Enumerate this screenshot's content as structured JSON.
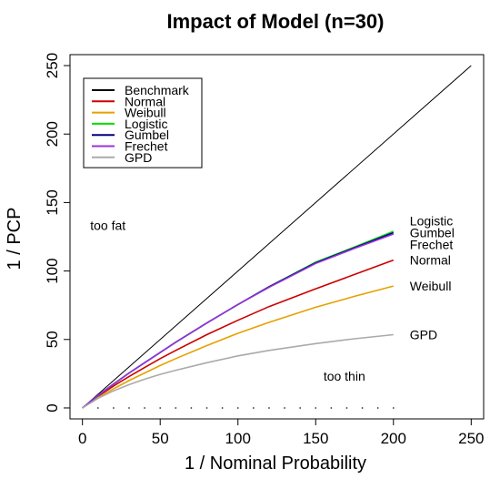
{
  "chart_data": {
    "type": "line",
    "title": "Impact of Model (n=30)",
    "xlabel": "1 / Nominal Probability",
    "ylabel": "1 / PCP",
    "xlim": [
      -8,
      258
    ],
    "ylim": [
      -8,
      258
    ],
    "x_ticks": [
      "0",
      "50",
      "100",
      "150",
      "200",
      "250"
    ],
    "y_ticks": [
      "0",
      "50",
      "100",
      "150",
      "200",
      "250"
    ],
    "legend_position": "top-left",
    "grid": false,
    "annotations": [
      {
        "text": "too fat",
        "x": 5,
        "y": 130
      },
      {
        "text": "too thin",
        "x": 155,
        "y": 20
      }
    ],
    "series": [
      {
        "name": "Benchmark",
        "color": "#000000",
        "x": [
          0,
          250
        ],
        "y": [
          0,
          250
        ],
        "end_label": ""
      },
      {
        "name": "Normal",
        "color": "#cc0000",
        "x": [
          0,
          10,
          20,
          30,
          40,
          50,
          60,
          80,
          100,
          120,
          150,
          175,
          200
        ],
        "y": [
          0,
          8.5,
          16,
          23,
          29.5,
          36,
          42,
          53.5,
          64,
          74,
          87,
          97.5,
          108
        ],
        "end_label": "Normal"
      },
      {
        "name": "Weibull",
        "color": "#e6a000",
        "x": [
          0,
          10,
          20,
          30,
          40,
          50,
          60,
          80,
          100,
          120,
          150,
          175,
          200
        ],
        "y": [
          0,
          7.5,
          14,
          20,
          25.5,
          31,
          36,
          45.5,
          54.5,
          62.5,
          73.5,
          81.5,
          89
        ],
        "end_label": "Weibull"
      },
      {
        "name": "Logistic",
        "color": "#00dd00",
        "x": [
          0,
          10,
          20,
          30,
          40,
          50,
          60,
          80,
          100,
          120,
          150,
          175,
          200
        ],
        "y": [
          0,
          9,
          17.5,
          25.5,
          33,
          40.5,
          48,
          62,
          75.5,
          88.5,
          106.5,
          117.5,
          129
        ],
        "end_label": "Logistic"
      },
      {
        "name": "Gumbel",
        "color": "#000080",
        "x": [
          0,
          10,
          20,
          30,
          40,
          50,
          60,
          80,
          100,
          120,
          150,
          175,
          200
        ],
        "y": [
          0,
          9,
          17.5,
          25.5,
          33,
          40.5,
          48,
          62,
          75.5,
          88.5,
          106,
          117,
          128
        ],
        "end_label": "Gumbel"
      },
      {
        "name": "Frechet",
        "color": "#9933dd",
        "x": [
          0,
          10,
          20,
          30,
          40,
          50,
          60,
          80,
          100,
          120,
          150,
          175,
          200
        ],
        "y": [
          0,
          9,
          17.5,
          25.5,
          33,
          40.5,
          48,
          62,
          75.5,
          88,
          105.5,
          116.5,
          127
        ],
        "end_label": "Frechet"
      },
      {
        "name": "GPD",
        "color": "#aaaaaa",
        "x": [
          0,
          10,
          20,
          30,
          40,
          50,
          60,
          80,
          100,
          120,
          150,
          175,
          200
        ],
        "y": [
          0,
          7,
          12.5,
          17,
          21,
          24.5,
          27.5,
          33,
          38,
          42,
          47,
          50.5,
          53.5
        ],
        "end_label": "GPD"
      }
    ]
  }
}
